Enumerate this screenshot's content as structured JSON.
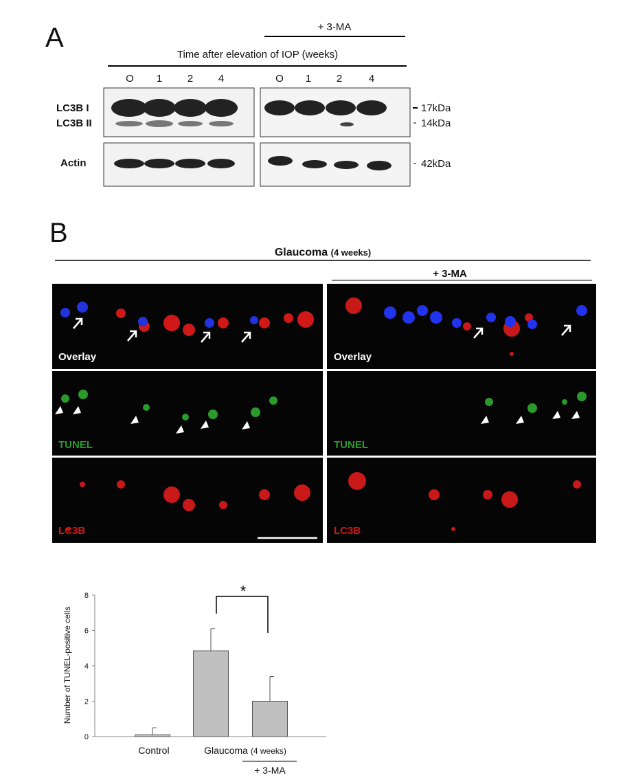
{
  "panel_a": {
    "label": "A",
    "treatment_label": "+ 3-MA",
    "time_label": "Time after elevation of IOP (weeks)",
    "lanes": [
      "O",
      "1",
      "2",
      "4",
      "O",
      "1",
      "2",
      "4"
    ],
    "band_labels": [
      "LC3B I",
      "LC3B II",
      "Actin"
    ],
    "band_sizes": [
      "17kDa",
      "14kDa",
      "42kDa"
    ]
  },
  "panel_b": {
    "label": "B",
    "title": "Glaucoma",
    "title_note": "(4 weeks)",
    "treatment_label": "+ 3-MA",
    "row_labels": [
      "Overlay",
      "TUNEL",
      "LC3B"
    ]
  },
  "chart_data": {
    "type": "bar",
    "y_label": "Number of TUNEL-positive cells",
    "categories": [
      "Control",
      null,
      "+ 3-MA"
    ],
    "group_label": "Glaucoma",
    "group_note": "(4 weeks)",
    "values": [
      0.1,
      4.85,
      2.0
    ],
    "errors": [
      0.4,
      1.25,
      1.4
    ],
    "color": "#c0c0c0",
    "ylim": [
      0,
      8
    ],
    "yticks": [
      0,
      2,
      4,
      6,
      8
    ],
    "annotation": "*"
  }
}
